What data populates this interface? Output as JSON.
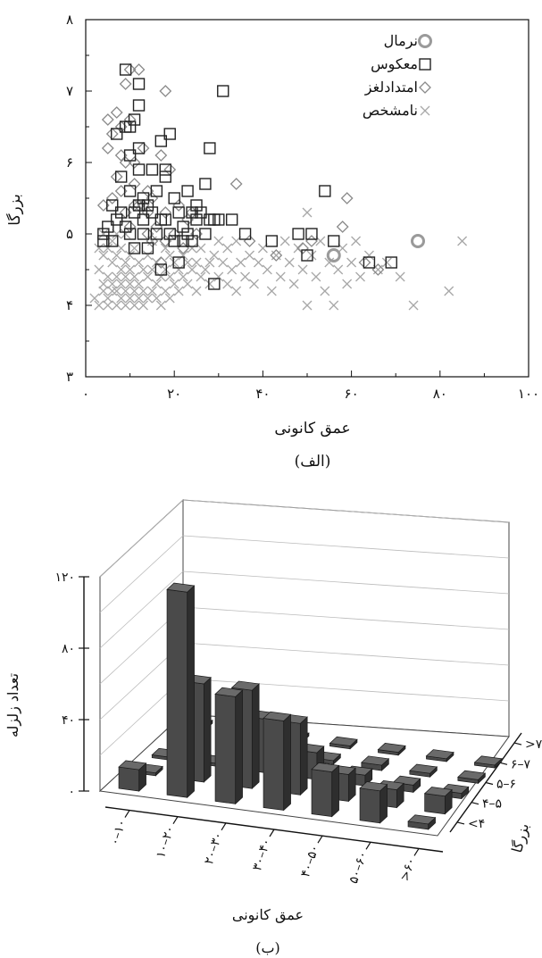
{
  "figure_a": {
    "caption": "(الف)",
    "xlabel": "عمق کانونی",
    "ylabel": "بزرگا"
  },
  "figure_b": {
    "caption": "(ب)",
    "xlabel": "عمق کانونی",
    "ylabel": "تعداد زلزله",
    "zlabel": "بزرگا"
  },
  "chart_data": [
    {
      "type": "scatter",
      "title": "",
      "xlabel": "عمق کانونی",
      "ylabel": "بزرگا",
      "xlim": [
        0,
        100
      ],
      "ylim": [
        3,
        8
      ],
      "xticks": [
        0,
        20,
        40,
        60,
        80,
        100
      ],
      "xtick_labels": [
        "۰",
        "۲۰",
        "۴۰",
        "۶۰",
        "۸۰",
        "۱۰۰"
      ],
      "yticks": [
        3,
        4,
        5,
        6,
        7,
        8
      ],
      "ytick_labels": [
        "۳",
        "۴",
        "۵",
        "۶",
        "۷",
        "۸"
      ],
      "legend_position": "top-right",
      "grid": false,
      "series": [
        {
          "name": "نرمال",
          "marker": "circle",
          "color": "#9a9a9a",
          "points": [
            [
              56,
              4.7
            ],
            [
              75,
              4.9
            ]
          ]
        },
        {
          "name": "معکوس",
          "marker": "square",
          "color": "#222222",
          "points": [
            [
              4,
              5
            ],
            [
              4,
              4.9
            ],
            [
              5,
              5.1
            ],
            [
              6,
              5.4
            ],
            [
              6,
              4.9
            ],
            [
              7,
              6.4
            ],
            [
              7,
              5.2
            ],
            [
              8,
              5.8
            ],
            [
              8,
              5.3
            ],
            [
              9,
              7.3
            ],
            [
              9,
              6.5
            ],
            [
              9,
              5.1
            ],
            [
              10,
              6.5
            ],
            [
              10,
              6.1
            ],
            [
              10,
              5.6
            ],
            [
              10,
              5.0
            ],
            [
              11,
              6.6
            ],
            [
              11,
              5.3
            ],
            [
              11,
              4.8
            ],
            [
              12,
              7.1
            ],
            [
              12,
              6.8
            ],
            [
              12,
              6.2
            ],
            [
              12,
              5.9
            ],
            [
              12,
              5.4
            ],
            [
              13,
              5.5
            ],
            [
              13,
              5.2
            ],
            [
              13,
              5.0
            ],
            [
              14,
              5.4
            ],
            [
              14,
              4.8
            ],
            [
              15,
              5.9
            ],
            [
              15,
              5.3
            ],
            [
              16,
              5.6
            ],
            [
              16,
              5.0
            ],
            [
              17,
              6.3
            ],
            [
              17,
              5.2
            ],
            [
              17,
              4.5
            ],
            [
              18,
              5.9
            ],
            [
              18,
              5.8
            ],
            [
              18,
              5.2
            ],
            [
              19,
              6.4
            ],
            [
              19,
              5.0
            ],
            [
              20,
              5.5
            ],
            [
              20,
              4.9
            ],
            [
              21,
              5.3
            ],
            [
              21,
              4.6
            ],
            [
              22,
              5.1
            ],
            [
              22,
              4.9
            ],
            [
              23,
              5.6
            ],
            [
              23,
              5.0
            ],
            [
              24,
              5.3
            ],
            [
              24,
              4.9
            ],
            [
              25,
              5.4
            ],
            [
              25,
              5.2
            ],
            [
              26,
              5.3
            ],
            [
              27,
              5.7
            ],
            [
              27,
              5.0
            ],
            [
              28,
              5.2
            ],
            [
              28,
              6.2
            ],
            [
              29,
              5.2
            ],
            [
              30,
              5.2
            ],
            [
              31,
              7.0
            ],
            [
              33,
              5.2
            ],
            [
              36,
              5.0
            ],
            [
              42,
              4.9
            ],
            [
              48,
              5.0
            ],
            [
              50,
              4.7
            ],
            [
              51,
              5.0
            ],
            [
              54,
              5.6
            ],
            [
              56,
              4.9
            ],
            [
              64,
              4.6
            ],
            [
              69,
              4.6
            ],
            [
              29,
              4.3
            ]
          ]
        },
        {
          "name": "امتدادلغز",
          "marker": "diamond",
          "color": "#8a8a8a",
          "points": [
            [
              4,
              5.4
            ],
            [
              5,
              6.6
            ],
            [
              5,
              6.2
            ],
            [
              6,
              6.4
            ],
            [
              6,
              5.5
            ],
            [
              7,
              6.7
            ],
            [
              7,
              5.8
            ],
            [
              8,
              6.5
            ],
            [
              8,
              6.1
            ],
            [
              8,
              5.6
            ],
            [
              9,
              7.1
            ],
            [
              9,
              6.0
            ],
            [
              9,
              5.3
            ],
            [
              10,
              7.3
            ],
            [
              10,
              6.6
            ],
            [
              10,
              5.1
            ],
            [
              11,
              6.0
            ],
            [
              11,
              5.7
            ],
            [
              12,
              7.3
            ],
            [
              12,
              5.4
            ],
            [
              13,
              6.2
            ],
            [
              13,
              5.4
            ],
            [
              14,
              5.6
            ],
            [
              14,
              5.0
            ],
            [
              15,
              5.5
            ],
            [
              15,
              4.9
            ],
            [
              16,
              5.1
            ],
            [
              17,
              6.1
            ],
            [
              17,
              4.6
            ],
            [
              18,
              5.3
            ],
            [
              18,
              4.9
            ],
            [
              19,
              5.9
            ],
            [
              20,
              5.0
            ],
            [
              21,
              5.4
            ],
            [
              22,
              4.8
            ],
            [
              23,
              5.2
            ],
            [
              24,
              5.3
            ],
            [
              25,
              5.0
            ],
            [
              34,
              5.7
            ],
            [
              37,
              4.9
            ],
            [
              43,
              4.7
            ],
            [
              49,
              4.8
            ],
            [
              51,
              4.9
            ],
            [
              58,
              5.1
            ],
            [
              59,
              5.5
            ],
            [
              63,
              4.6
            ],
            [
              66,
              4.5
            ],
            [
              18,
              7.0
            ],
            [
              11,
              5.4
            ],
            [
              14,
              5.3
            ]
          ]
        },
        {
          "name": "نامشخص",
          "marker": "x",
          "color": "#a8a8a8",
          "points": [
            [
              3,
              4.0
            ],
            [
              3,
              4.5
            ],
            [
              4,
              4.2
            ],
            [
              4,
              4.7
            ],
            [
              4,
              4.3
            ],
            [
              5,
              4.0
            ],
            [
              5,
              4.4
            ],
            [
              5,
              4.8
            ],
            [
              5,
              4.1
            ],
            [
              6,
              4.2
            ],
            [
              6,
              4.6
            ],
            [
              6,
              4.3
            ],
            [
              6,
              4.9
            ],
            [
              7,
              4.0
            ],
            [
              7,
              4.4
            ],
            [
              7,
              4.7
            ],
            [
              7,
              4.2
            ],
            [
              8,
              4.1
            ],
            [
              8,
              4.5
            ],
            [
              8,
              4.3
            ],
            [
              8,
              4.8
            ],
            [
              9,
              4.0
            ],
            [
              9,
              4.4
            ],
            [
              9,
              4.6
            ],
            [
              9,
              4.2
            ],
            [
              10,
              4.1
            ],
            [
              10,
              4.3
            ],
            [
              10,
              4.7
            ],
            [
              10,
              4.5
            ],
            [
              11,
              4.0
            ],
            [
              11,
              4.2
            ],
            [
              11,
              4.4
            ],
            [
              11,
              4.8
            ],
            [
              12,
              4.1
            ],
            [
              12,
              4.3
            ],
            [
              12,
              4.6
            ],
            [
              13,
              4.0
            ],
            [
              13,
              4.5
            ],
            [
              13,
              4.2
            ],
            [
              14,
              4.1
            ],
            [
              14,
              4.4
            ],
            [
              14,
              4.7
            ],
            [
              15,
              4.2
            ],
            [
              15,
              4.5
            ],
            [
              15,
              4.9
            ],
            [
              16,
              4.1
            ],
            [
              16,
              4.3
            ],
            [
              16,
              4.6
            ],
            [
              17,
              4.0
            ],
            [
              17,
              4.4
            ],
            [
              18,
              4.2
            ],
            [
              18,
              4.5
            ],
            [
              18,
              4.8
            ],
            [
              19,
              4.1
            ],
            [
              19,
              4.4
            ],
            [
              19,
              4.7
            ],
            [
              20,
              4.3
            ],
            [
              20,
              4.6
            ],
            [
              21,
              4.2
            ],
            [
              21,
              4.5
            ],
            [
              22,
              4.4
            ],
            [
              22,
              4.7
            ],
            [
              23,
              4.3
            ],
            [
              23,
              4.6
            ],
            [
              24,
              4.5
            ],
            [
              24,
              4.8
            ],
            [
              25,
              4.2
            ],
            [
              25,
              4.6
            ],
            [
              26,
              4.4
            ],
            [
              26,
              4.8
            ],
            [
              27,
              4.5
            ],
            [
              28,
              4.6
            ],
            [
              28,
              4.3
            ],
            [
              29,
              4.7
            ],
            [
              30,
              4.4
            ],
            [
              30,
              4.9
            ],
            [
              31,
              4.6
            ],
            [
              32,
              4.3
            ],
            [
              32,
              4.8
            ],
            [
              33,
              4.5
            ],
            [
              34,
              4.2
            ],
            [
              34,
              4.9
            ],
            [
              35,
              4.6
            ],
            [
              36,
              4.4
            ],
            [
              37,
              4.7
            ],
            [
              38,
              4.3
            ],
            [
              39,
              4.6
            ],
            [
              40,
              4.8
            ],
            [
              41,
              4.5
            ],
            [
              42,
              4.2
            ],
            [
              43,
              4.7
            ],
            [
              44,
              4.4
            ],
            [
              45,
              4.9
            ],
            [
              46,
              4.6
            ],
            [
              47,
              4.3
            ],
            [
              48,
              4.8
            ],
            [
              49,
              4.5
            ],
            [
              50,
              5.3
            ],
            [
              50,
              4.0
            ],
            [
              51,
              4.7
            ],
            [
              52,
              4.4
            ],
            [
              53,
              4.9
            ],
            [
              54,
              4.2
            ],
            [
              55,
              4.6
            ],
            [
              56,
              4.0
            ],
            [
              57,
              4.5
            ],
            [
              58,
              4.8
            ],
            [
              59,
              4.3
            ],
            [
              60,
              4.6
            ],
            [
              61,
              4.9
            ],
            [
              62,
              4.4
            ],
            [
              64,
              4.7
            ],
            [
              66,
              4.5
            ],
            [
              68,
              4.6
            ],
            [
              71,
              4.4
            ],
            [
              74,
              4.0
            ],
            [
              82,
              4.2
            ],
            [
              85,
              4.9
            ],
            [
              3,
              4.8
            ],
            [
              4,
              5.0
            ],
            [
              7,
              5.0
            ],
            [
              9,
              5.0
            ],
            [
              2,
              4.1
            ]
          ]
        }
      ]
    },
    {
      "type": "bar",
      "subtype": "3d-bar",
      "title": "",
      "xlabel": "عمق کانونی",
      "ylabel": "تعداد زلزله",
      "zlabel": "بزرگا",
      "categories": [
        "۰–۱۰",
        "۱۰–۲۰",
        "۲۰–۳۰",
        "۳۰–۴۰",
        "۴۰–۵۰",
        "۵۰–۶۰",
        ">۶۰"
      ],
      "depth_categories": [
        "<۴",
        "۴–۵",
        "۵–۶",
        "۶–۷",
        ">۷"
      ],
      "ylim": [
        0,
        120
      ],
      "yticks": [
        0,
        40,
        80,
        120
      ],
      "ytick_labels": [
        "۰",
        "۴۰",
        "۸۰",
        "۱۲۰"
      ],
      "grid": true,
      "series": [
        {
          "name": "<۴",
          "values": [
            12,
            115,
            60,
            50,
            25,
            18,
            3
          ]
        },
        {
          "name": "۴–۵",
          "values": [
            0,
            55,
            55,
            40,
            15,
            10,
            10
          ]
        },
        {
          "name": "۵–۶",
          "values": [
            0,
            0,
            30,
            15,
            6,
            4,
            3
          ]
        },
        {
          "name": "۶–۷",
          "values": [
            0,
            0,
            0,
            2,
            3,
            2,
            2
          ]
        },
        {
          "name": ">۷",
          "values": [
            0,
            0,
            0,
            0,
            1,
            1,
            1
          ]
        }
      ]
    }
  ]
}
